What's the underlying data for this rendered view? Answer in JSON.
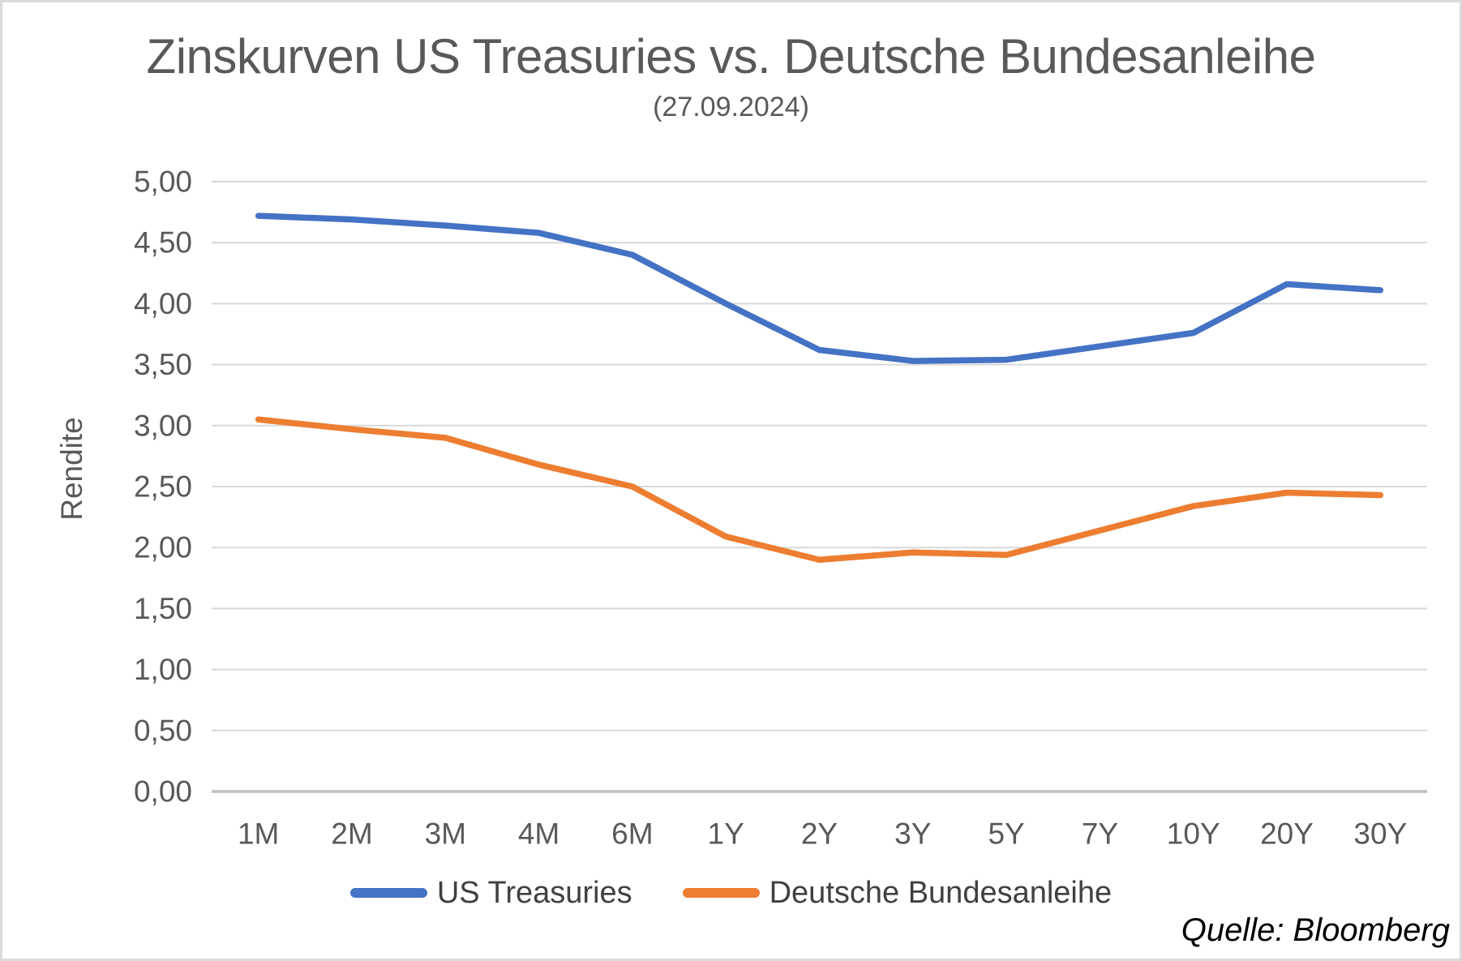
{
  "chart_data": {
    "type": "line",
    "title": "Zinskurven US Treasuries vs. Deutsche Bundesanleihe",
    "subtitle": "(27.09.2024)",
    "ylabel": "Rendite",
    "xlabel": "",
    "categories": [
      "1M",
      "2M",
      "3M",
      "4M",
      "6M",
      "1Y",
      "2Y",
      "3Y",
      "5Y",
      "7Y",
      "10Y",
      "20Y",
      "30Y"
    ],
    "series": [
      {
        "name": "US Treasuries",
        "color": "#4472C4",
        "values": [
          4.72,
          4.69,
          4.64,
          4.58,
          4.4,
          4.0,
          3.62,
          3.53,
          3.54,
          3.65,
          3.76,
          4.16,
          4.11
        ]
      },
      {
        "name": "Deutsche Bundesanleihe",
        "color": "#ED7D31",
        "values": [
          3.05,
          2.97,
          2.9,
          2.68,
          2.5,
          2.09,
          1.9,
          1.96,
          1.94,
          2.14,
          2.34,
          2.45,
          2.43
        ]
      }
    ],
    "ylim": [
      0,
      5
    ],
    "ytick_step": 0.5,
    "ytick_labels": [
      "0,00",
      "0,50",
      "1,00",
      "1,50",
      "2,00",
      "2,50",
      "3,00",
      "3,50",
      "4,00",
      "4,50",
      "5,00"
    ],
    "grid": true,
    "legend_position": "bottom"
  },
  "source_note": "Quelle: Bloomberg",
  "colors": {
    "gridline": "#D9D9D9",
    "axis_line": "#BFBFBF",
    "axis_text": "#595959",
    "legend_text": "#404040",
    "background": "#FFFFFF",
    "frame_border": "#DBDBDB"
  }
}
